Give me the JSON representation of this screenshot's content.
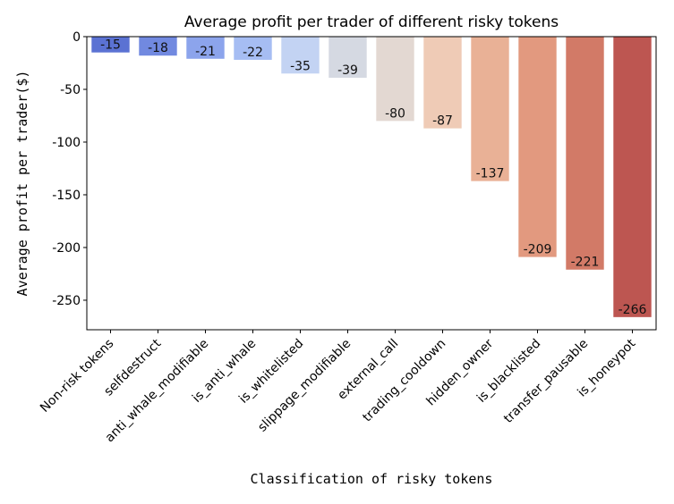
{
  "chart_data": {
    "type": "bar",
    "title": "Average profit per trader of different risky tokens",
    "xlabel": "Classification of risky tokens",
    "ylabel": "Average profit per trader($)",
    "ylim": [
      -278,
      0
    ],
    "yticks": [
      0,
      -50,
      -100,
      -150,
      -200,
      -250
    ],
    "categories": [
      "Non-risk tokens",
      "selfdestruct",
      "anti_whale_modifiable",
      "is_anti_whale",
      "is_whitelisted",
      "slippage_modifiable",
      "external_call",
      "trading_cooldown",
      "hidden_owner",
      "is_blacklisted",
      "transfer_pausable",
      "is_honeypot"
    ],
    "values": [
      -15,
      -18,
      -21,
      -22,
      -35,
      -39,
      -80,
      -87,
      -137,
      -209,
      -221,
      -266
    ],
    "colors": [
      "#5b72d3",
      "#7189e0",
      "#8ca4ec",
      "#a6bdf3",
      "#c3d3f3",
      "#d5d9e2",
      "#e3d8d2",
      "#efcbb6",
      "#e9b196",
      "#e2997f",
      "#d27a67",
      "#bd5651"
    ],
    "grid": false,
    "legend": "none"
  }
}
